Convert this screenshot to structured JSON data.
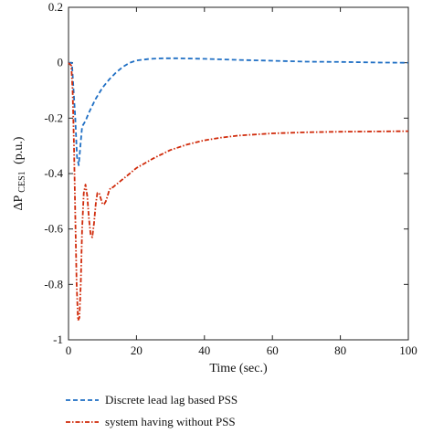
{
  "chart_data": {
    "type": "line",
    "title": "",
    "xlabel": "Time (sec.)",
    "ylabel": "ΔP",
    "ylabel_sub": "CES1",
    "ylabel_unit": "(p.u.)",
    "xlim": [
      0,
      100
    ],
    "ylim": [
      -1,
      0.2
    ],
    "xticks": [
      0,
      20,
      40,
      60,
      80,
      100
    ],
    "yticks": [
      0.2,
      0,
      -0.2,
      -0.4,
      -0.6,
      -0.8,
      -1
    ],
    "ytick_labels": [
      "0.2",
      "0",
      "-0.2",
      "-0.4",
      "-0.6",
      "-0.8",
      "-1"
    ],
    "grid": false,
    "legend_position": "bottom",
    "series": [
      {
        "name": "Discrete lead lag based PSS",
        "color": "#1f6fc4",
        "style": "dashed",
        "x": [
          0,
          1,
          2,
          2.5,
          3,
          3.5,
          4,
          5,
          6,
          8,
          10,
          12,
          14,
          16,
          18,
          20,
          24,
          28,
          32,
          40,
          50,
          60,
          70,
          80,
          90,
          100
        ],
        "y": [
          0,
          0,
          -0.2,
          -0.34,
          -0.37,
          -0.3,
          -0.23,
          -0.21,
          -0.18,
          -0.13,
          -0.09,
          -0.06,
          -0.035,
          -0.015,
          0.0,
          0.008,
          0.014,
          0.016,
          0.016,
          0.014,
          0.01,
          0.007,
          0.004,
          0.003,
          0.001,
          0.0
        ]
      },
      {
        "name": "system having without PSS",
        "color": "#d02a0a",
        "style": "dashdot",
        "x": [
          0,
          0.8,
          1.2,
          1.6,
          2,
          2.4,
          2.8,
          3.2,
          3.6,
          4,
          4.5,
          5,
          5.5,
          6,
          6.5,
          7,
          7.5,
          8,
          8.5,
          9,
          9.5,
          10,
          10.5,
          11,
          11.5,
          12,
          12.5,
          13,
          14,
          15,
          16,
          18,
          20,
          25,
          30,
          35,
          40,
          45,
          50,
          60,
          70,
          80,
          90,
          100
        ],
        "y": [
          0,
          -0.01,
          -0.1,
          -0.3,
          -0.55,
          -0.8,
          -0.93,
          -0.92,
          -0.8,
          -0.6,
          -0.47,
          -0.44,
          -0.48,
          -0.56,
          -0.62,
          -0.63,
          -0.58,
          -0.51,
          -0.47,
          -0.47,
          -0.49,
          -0.51,
          -0.51,
          -0.5,
          -0.48,
          -0.46,
          -0.45,
          -0.45,
          -0.44,
          -0.43,
          -0.42,
          -0.4,
          -0.38,
          -0.345,
          -0.315,
          -0.295,
          -0.28,
          -0.27,
          -0.263,
          -0.255,
          -0.251,
          -0.249,
          -0.248,
          -0.247
        ]
      }
    ]
  }
}
